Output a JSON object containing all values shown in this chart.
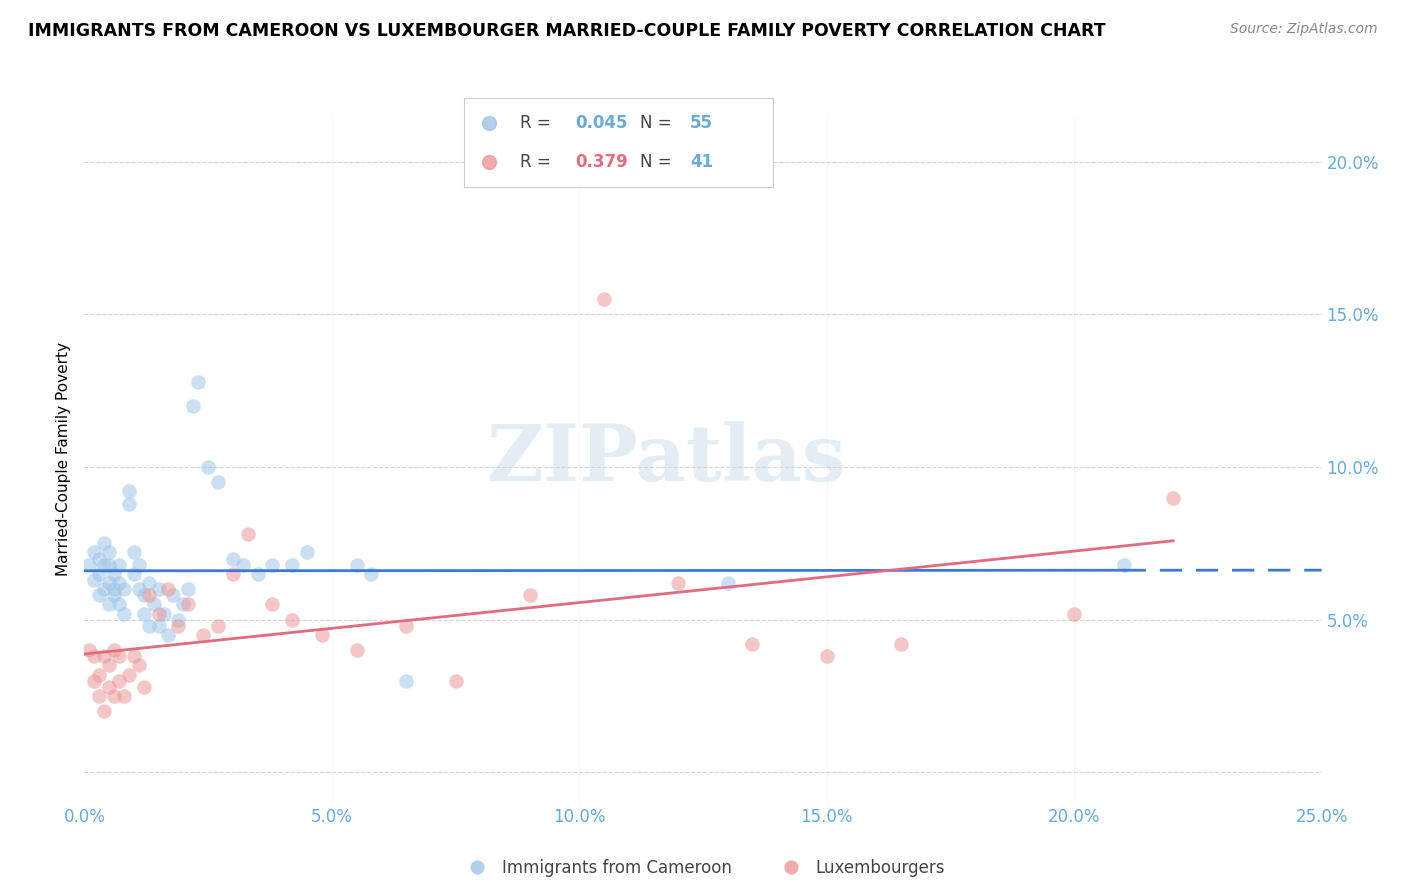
{
  "title": "IMMIGRANTS FROM CAMEROON VS LUXEMBOURGER MARRIED-COUPLE FAMILY POVERTY CORRELATION CHART",
  "source": "Source: ZipAtlas.com",
  "ylabel": "Married-Couple Family Poverty",
  "xlim": [
    0.0,
    0.25
  ],
  "ylim": [
    -0.01,
    0.215
  ],
  "xticks": [
    0.0,
    0.05,
    0.1,
    0.15,
    0.2,
    0.25
  ],
  "xtick_labels": [
    "0.0%",
    "5.0%",
    "10.0%",
    "15.0%",
    "20.0%",
    "25.0%"
  ],
  "yticks": [
    0.0,
    0.05,
    0.1,
    0.15,
    0.2
  ],
  "ytick_labels_right": [
    "",
    "5.0%",
    "10.0%",
    "15.0%",
    "20.0%"
  ],
  "blue_color": "#9fc5e8",
  "pink_color": "#ea9999",
  "blue_line_color": "#3c78d8",
  "pink_line_color": "#e06c82",
  "axis_tick_color": "#6aa9d8",
  "legend_blue_r": "0.045",
  "legend_blue_n": "55",
  "legend_pink_r": "0.379",
  "legend_pink_n": "41",
  "watermark_text": "ZIPatlas",
  "blue_scatter_x": [
    0.001,
    0.002,
    0.002,
    0.003,
    0.003,
    0.003,
    0.004,
    0.004,
    0.004,
    0.005,
    0.005,
    0.005,
    0.005,
    0.006,
    0.006,
    0.006,
    0.007,
    0.007,
    0.007,
    0.008,
    0.008,
    0.009,
    0.009,
    0.01,
    0.01,
    0.011,
    0.011,
    0.012,
    0.012,
    0.013,
    0.013,
    0.014,
    0.015,
    0.015,
    0.016,
    0.017,
    0.018,
    0.019,
    0.02,
    0.021,
    0.022,
    0.023,
    0.025,
    0.027,
    0.03,
    0.032,
    0.035,
    0.038,
    0.042,
    0.045,
    0.055,
    0.058,
    0.065,
    0.13,
    0.21
  ],
  "blue_scatter_y": [
    0.068,
    0.063,
    0.072,
    0.058,
    0.065,
    0.07,
    0.06,
    0.068,
    0.075,
    0.055,
    0.062,
    0.068,
    0.072,
    0.06,
    0.065,
    0.058,
    0.055,
    0.062,
    0.068,
    0.052,
    0.06,
    0.088,
    0.092,
    0.065,
    0.072,
    0.06,
    0.068,
    0.052,
    0.058,
    0.048,
    0.062,
    0.055,
    0.048,
    0.06,
    0.052,
    0.045,
    0.058,
    0.05,
    0.055,
    0.06,
    0.12,
    0.128,
    0.1,
    0.095,
    0.07,
    0.068,
    0.065,
    0.068,
    0.068,
    0.072,
    0.068,
    0.065,
    0.03,
    0.062,
    0.068
  ],
  "pink_scatter_x": [
    0.001,
    0.002,
    0.002,
    0.003,
    0.003,
    0.004,
    0.004,
    0.005,
    0.005,
    0.006,
    0.006,
    0.007,
    0.007,
    0.008,
    0.009,
    0.01,
    0.011,
    0.012,
    0.013,
    0.015,
    0.017,
    0.019,
    0.021,
    0.024,
    0.027,
    0.03,
    0.033,
    0.038,
    0.042,
    0.048,
    0.055,
    0.065,
    0.075,
    0.09,
    0.105,
    0.12,
    0.135,
    0.15,
    0.165,
    0.2,
    0.22
  ],
  "pink_scatter_y": [
    0.04,
    0.03,
    0.038,
    0.025,
    0.032,
    0.02,
    0.038,
    0.028,
    0.035,
    0.025,
    0.04,
    0.03,
    0.038,
    0.025,
    0.032,
    0.038,
    0.035,
    0.028,
    0.058,
    0.052,
    0.06,
    0.048,
    0.055,
    0.045,
    0.048,
    0.065,
    0.078,
    0.055,
    0.05,
    0.045,
    0.04,
    0.048,
    0.03,
    0.058,
    0.155,
    0.062,
    0.042,
    0.038,
    0.042,
    0.052,
    0.09
  ],
  "grid_color": "#d0d0d0",
  "background_color": "#ffffff"
}
